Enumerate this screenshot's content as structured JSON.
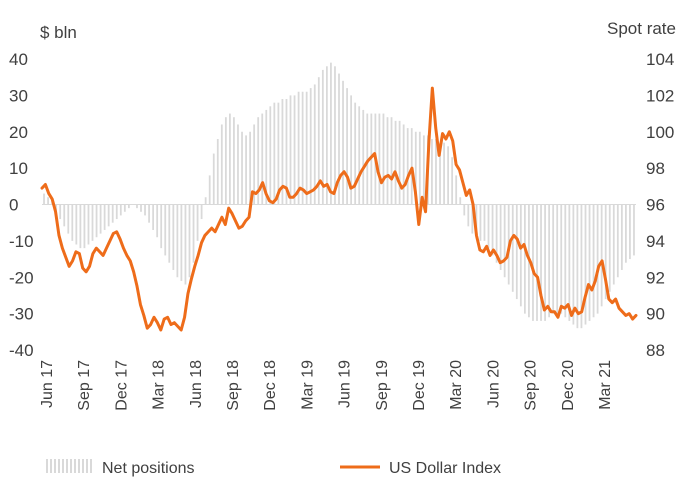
{
  "chart_data": {
    "type": "bar+line",
    "left_axis": {
      "label": "$ bln",
      "ticks": [
        40,
        30,
        20,
        10,
        0,
        -10,
        -20,
        -30,
        -40
      ],
      "range": [
        -40,
        40
      ]
    },
    "right_axis": {
      "label": "Spot rate",
      "ticks": [
        104,
        102,
        100,
        98,
        96,
        94,
        92,
        90,
        88
      ],
      "range": [
        88,
        104
      ]
    },
    "x_ticks": [
      "Jun 17",
      "Sep 17",
      "Dec 17",
      "Mar 18",
      "Jun 18",
      "Sep 18",
      "Dec 18",
      "Mar 19",
      "Jun 19",
      "Sep 19",
      "Dec 19",
      "Mar 20",
      "Jun 20",
      "Sep 20",
      "Dec 20",
      "Mar 21"
    ],
    "grid": false,
    "legend_position": "bottom",
    "series": [
      {
        "name": "Net positions",
        "type": "bar",
        "axis": "left",
        "color": "#d9d9d9",
        "values": [
          3,
          2,
          1,
          -2,
          -4,
          -6,
          -8,
          -10,
          -11,
          -12,
          -12,
          -11,
          -10,
          -9,
          -8,
          -7,
          -6,
          -5,
          -4,
          -3,
          -2,
          -1,
          0,
          -1,
          -2,
          -3,
          -5,
          -7,
          -9,
          -12,
          -14,
          -16,
          -18,
          -20,
          -21,
          -22,
          -20,
          -16,
          -10,
          -4,
          2,
          8,
          14,
          18,
          22,
          24,
          25,
          24,
          22,
          20,
          19,
          20,
          22,
          24,
          25,
          26,
          27,
          28,
          28,
          29,
          29,
          30,
          30,
          31,
          31,
          31,
          32,
          33,
          35,
          37,
          38,
          39,
          38,
          36,
          34,
          32,
          30,
          28,
          27,
          26,
          25,
          25,
          25,
          25,
          25,
          24,
          24,
          23,
          23,
          22,
          21,
          21,
          20,
          20,
          19,
          19,
          18,
          18,
          17,
          17,
          16,
          13,
          8,
          2,
          -3,
          -6,
          -8,
          -9,
          -10,
          -10,
          -12,
          -14,
          -16,
          -18,
          -20,
          -22,
          -24,
          -26,
          -28,
          -30,
          -31,
          -32,
          -32,
          -32,
          -32,
          -31,
          -30,
          -30,
          -30,
          -31,
          -32,
          -33,
          -34,
          -34,
          -33,
          -32,
          -31,
          -30,
          -28,
          -26,
          -24,
          -22,
          -20,
          -18,
          -16,
          -15,
          -14
        ]
      },
      {
        "name": "US Dollar Index",
        "type": "line",
        "axis": "right",
        "color": "#ee6c1a",
        "values": [
          96.9,
          97.1,
          96.6,
          96.3,
          95.6,
          94.3,
          93.6,
          93.1,
          92.6,
          92.9,
          93.4,
          93.3,
          92.5,
          92.3,
          92.6,
          93.3,
          93.6,
          93.4,
          93.2,
          93.6,
          94.0,
          94.4,
          94.5,
          94.1,
          93.6,
          93.2,
          92.9,
          92.3,
          91.5,
          90.5,
          89.9,
          89.2,
          89.4,
          89.8,
          89.5,
          89.1,
          89.7,
          89.8,
          89.4,
          89.5,
          89.3,
          89.1,
          89.8,
          91.1,
          91.9,
          92.6,
          93.2,
          93.9,
          94.3,
          94.5,
          94.7,
          94.5,
          94.9,
          95.3,
          94.9,
          95.8,
          95.5,
          95.1,
          94.7,
          94.8,
          95.1,
          95.3,
          96.7,
          96.6,
          96.8,
          97.2,
          96.6,
          96.2,
          96.1,
          96.3,
          96.8,
          97.0,
          96.9,
          96.4,
          96.4,
          96.6,
          96.9,
          96.8,
          96.6,
          96.7,
          96.8,
          97.0,
          97.3,
          97.0,
          97.1,
          96.7,
          96.6,
          97.2,
          97.6,
          97.8,
          97.5,
          96.9,
          97.0,
          97.4,
          97.8,
          98.1,
          98.4,
          98.6,
          98.8,
          97.8,
          97.2,
          97.5,
          97.6,
          97.4,
          97.8,
          97.3,
          96.9,
          97.1,
          97.6,
          98.0,
          96.7,
          94.9,
          96.4,
          95.6,
          99.5,
          102.4,
          100.2,
          98.7,
          99.9,
          99.6,
          100.0,
          99.5,
          98.2,
          97.9,
          97.2,
          96.5,
          96.8,
          96.0,
          94.3,
          93.5,
          93.4,
          93.7,
          93.2,
          93.5,
          93.2,
          92.8,
          92.9,
          93.1,
          94.0,
          94.3,
          94.1,
          93.6,
          93.8,
          93.2,
          92.8,
          92.2,
          92.0,
          91.0,
          90.2,
          90.4,
          90.1,
          90.1,
          89.8,
          90.4,
          90.3,
          90.5,
          89.9,
          90.3,
          90.0,
          90.1,
          90.9,
          91.6,
          91.3,
          91.8,
          92.6,
          92.9,
          91.9,
          90.8,
          90.6,
          90.8,
          90.3,
          90.1,
          89.9,
          90.0,
          89.7,
          89.9
        ]
      }
    ]
  }
}
